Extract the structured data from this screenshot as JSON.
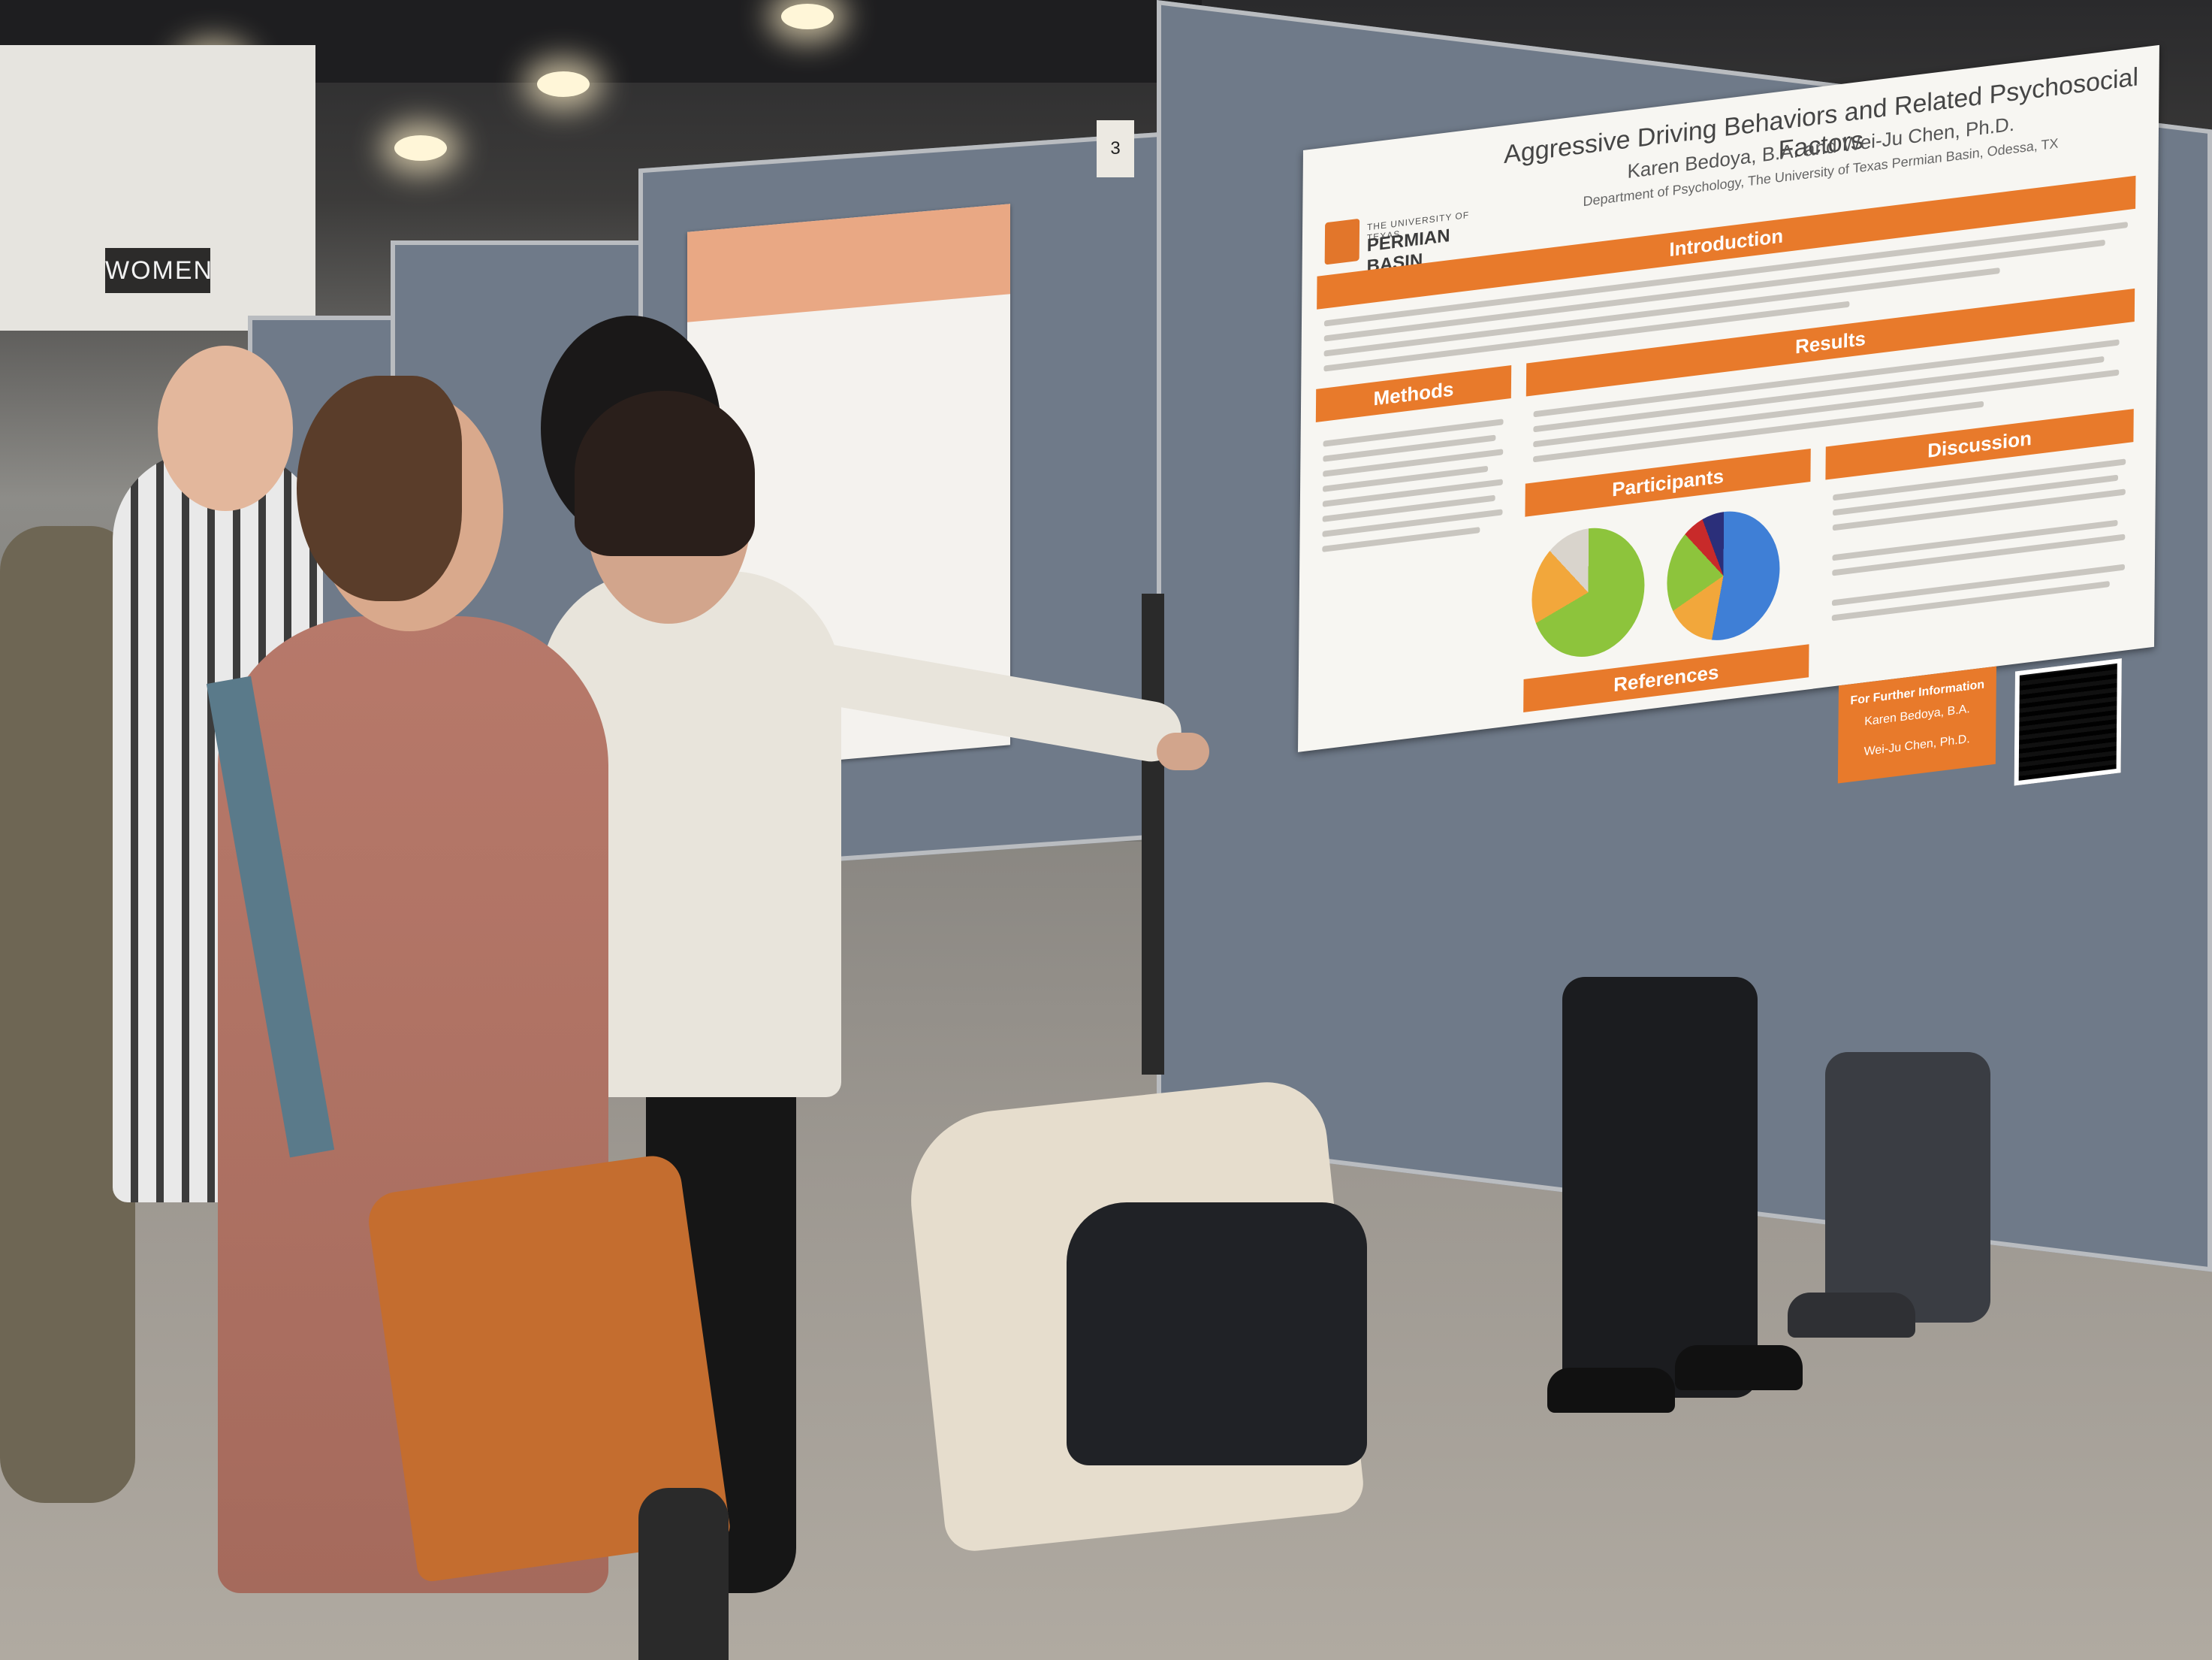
{
  "scene": {
    "restroom_sign": "WOMEN",
    "board_number": "3"
  },
  "poster": {
    "title": "Aggressive Driving Behaviors and Related Psychosocial Factors",
    "authors": "Karen Bedoya, B.A. and Wei-Ju Chen, Ph.D.",
    "department": "Department of Psychology, The University of Texas Permian Basin, Odessa, TX",
    "logo_small": "THE UNIVERSITY OF TEXAS",
    "logo_big": "PERMIAN BASIN",
    "sections": {
      "introduction": "Introduction",
      "methods": "Methods",
      "results": "Results",
      "participants": "Participants",
      "discussion": "Discussion",
      "references": "References"
    },
    "contact": {
      "heading": "For Further Information",
      "name1": "Karen Bedoya, B.A.",
      "name2": "Wei-Ju Chen, Ph.D."
    },
    "colors": {
      "accent": "#e87a2b",
      "pie_green": "#8dc43c",
      "pie_blue": "#3f7fd6",
      "pie_orange": "#f2a73b"
    }
  }
}
